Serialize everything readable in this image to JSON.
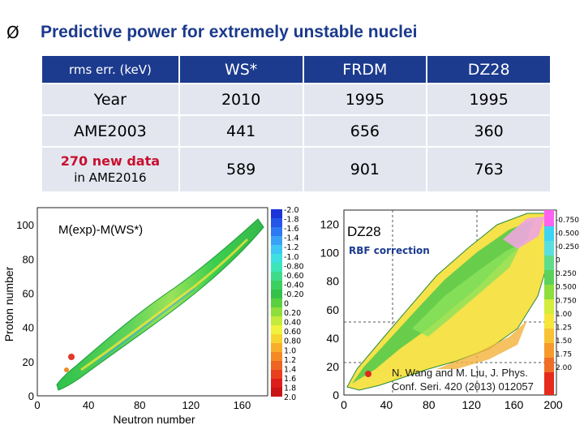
{
  "slide": {
    "bullet": "Ø",
    "title": "Predictive power for extremely unstable nuclei"
  },
  "table": {
    "header": [
      "rms err. (keV)",
      "WS*",
      "FRDM",
      "DZ28"
    ],
    "rows": [
      {
        "label": "Year",
        "values": [
          "2010",
          "1995",
          "1995"
        ]
      },
      {
        "label": "AME2003",
        "values": [
          "441",
          "656",
          "360"
        ]
      },
      {
        "label_main": "270 new data",
        "label_sub": "in AME2016",
        "values": [
          "589",
          "901",
          "763"
        ]
      }
    ],
    "colors": {
      "header_bg": "#1c3b8e",
      "cell_bg": "#e3e6ef",
      "accent_red": "#c8102e"
    }
  },
  "left_plot": {
    "title": "M(exp)-M(WS*)",
    "xlabel": "Neutron number",
    "ylabel": "Proton number",
    "x_ticks": [
      "0",
      "40",
      "80",
      "120",
      "160"
    ],
    "y_ticks": [
      "0",
      "20",
      "40",
      "60",
      "80",
      "100"
    ],
    "colorbar_ticks": [
      "-2.0",
      "-1.8",
      "-1.6",
      "-1.4",
      "-1.2",
      "-1.0",
      "-0.80",
      "-0.60",
      "-0.40",
      "-0.20",
      "0",
      "0.20",
      "0.40",
      "0.60",
      "0.80",
      "1.0",
      "1.2",
      "1.4",
      "1.6",
      "1.8",
      "2.0"
    ]
  },
  "right_plot": {
    "title": "DZ28",
    "subtitle": "RBF correction",
    "x_ticks": [
      "0",
      "40",
      "80",
      "120",
      "160",
      "200"
    ],
    "y_ticks": [
      "0",
      "20",
      "40",
      "60",
      "80",
      "100",
      "120"
    ],
    "colorbar_ticks": [
      "-0.750",
      "-0.500",
      "-0.250",
      "0",
      "0.250",
      "0.500",
      "0.750",
      "1.00",
      "1.25",
      "1.50",
      "1.75",
      "2.00"
    ],
    "citation_line1": "N. Wang and M. Liu, J. Phys.",
    "citation_line2": "Conf. Seri. 420 (2013) 012057"
  }
}
